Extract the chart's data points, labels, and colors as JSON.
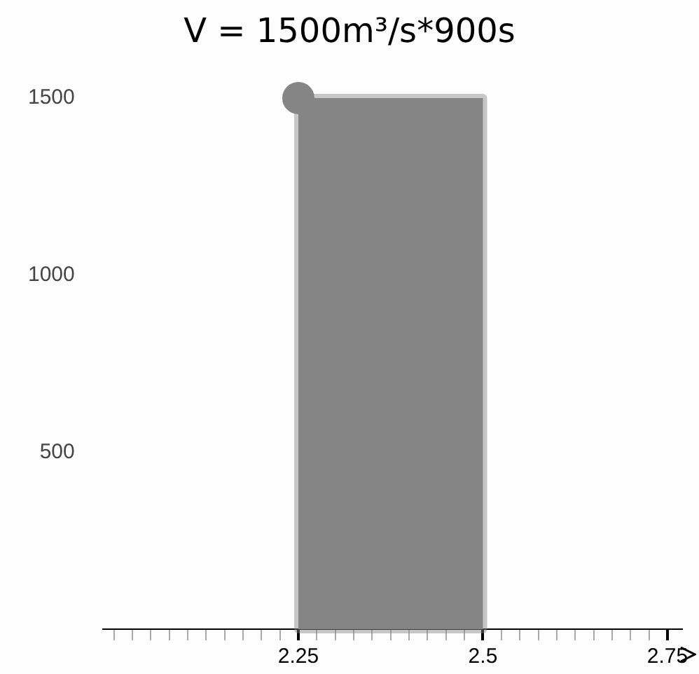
{
  "chart_data": {
    "type": "area",
    "title": "V = 1500m³/s*900s",
    "series": [
      {
        "color": "#858585",
        "values": [
          1500,
          1500
        ]
      },
      {
        "type": "scatter",
        "color": "#858585",
        "marker": "circle",
        "values": [
          1500,
          null
        ]
      }
    ],
    "x": [
      2.25,
      2.5
    ],
    "xlim": [
      1.985,
      2.77
    ],
    "xticks": [
      {
        "value": 2.0,
        "label": null
      },
      {
        "value": 2.025,
        "label": null
      },
      {
        "value": 2.05,
        "label": null
      },
      {
        "value": 2.075,
        "label": null
      },
      {
        "value": 2.1,
        "label": null
      },
      {
        "value": 2.125,
        "label": null
      },
      {
        "value": 2.15,
        "label": null
      },
      {
        "value": 2.175,
        "label": null
      },
      {
        "value": 2.2,
        "label": null
      },
      {
        "value": 2.225,
        "label": null
      },
      2.25,
      {
        "value": 2.275,
        "label": null
      },
      {
        "value": 2.3,
        "label": null
      },
      {
        "value": 2.325,
        "label": null
      },
      {
        "value": 2.35,
        "label": null
      },
      {
        "value": 2.375,
        "label": null
      },
      {
        "value": 2.4,
        "label": null
      },
      {
        "value": 2.425,
        "label": null
      },
      {
        "value": 2.45,
        "label": null
      },
      {
        "value": 2.475,
        "label": null
      },
      2.5,
      {
        "value": 2.525,
        "label": null
      },
      {
        "value": 2.55,
        "label": null
      },
      {
        "value": 2.575,
        "label": null
      },
      {
        "value": 2.6,
        "label": null
      },
      {
        "value": 2.625,
        "label": null
      },
      {
        "value": 2.65,
        "label": null
      },
      {
        "value": 2.675,
        "label": null
      },
      {
        "value": 2.7,
        "label": null
      },
      {
        "value": 2.725,
        "label": null
      },
      2.75
    ],
    "ylim": [
      0,
      1500
    ],
    "yticks": [
      500,
      1000,
      1500
    ],
    "grid": false
  }
}
